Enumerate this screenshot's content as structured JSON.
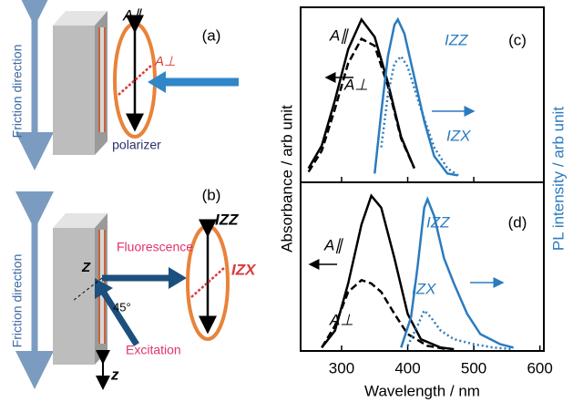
{
  "diagrams": [
    {
      "label": "(a)",
      "axis_label": "Friction direction",
      "polarizer": "polarizer",
      "parallel": "A∥",
      "perp": "A⊥"
    },
    {
      "label": "(b)",
      "axis_label": "Friction direction",
      "fluorescence": "Fluorescence",
      "angle": "45°",
      "excitation": "Excitation",
      "zz": "IZZ",
      "zx": "IZX",
      "z_upper": "Z",
      "z_lower": "z"
    }
  ],
  "figure": {
    "ylabel": "Absorbance / arb unit",
    "y2label": "PL intensity / arb unit"
  },
  "chart_data": [
    {
      "type": "line",
      "title": "(c)",
      "xlim": [
        238,
        606
      ],
      "ylim": [
        0,
        1
      ],
      "xticks": [
        300,
        400,
        500
      ],
      "show_tick_labels": false,
      "series": [
        {
          "name": "A∥",
          "color": "#000000",
          "style": "solid",
          "x": [
            250,
            270,
            290,
            310,
            330,
            350,
            370,
            390,
            410
          ],
          "values": [
            0.08,
            0.21,
            0.47,
            0.76,
            0.93,
            0.83,
            0.57,
            0.26,
            0.08
          ]
        },
        {
          "name": "A⊥",
          "color": "#000000",
          "style": "dashed",
          "x": [
            250,
            270,
            290,
            310,
            330,
            350,
            370,
            390,
            410
          ],
          "values": [
            0.06,
            0.18,
            0.42,
            0.68,
            0.82,
            0.78,
            0.55,
            0.25,
            0.08
          ]
        },
        {
          "name": "IZZ",
          "color": "#2b7bbf",
          "style": "solid",
          "x": [
            350,
            360,
            370,
            380,
            385,
            395,
            410,
            425,
            440,
            460,
            475
          ],
          "values": [
            0.05,
            0.4,
            0.72,
            0.9,
            0.93,
            0.85,
            0.6,
            0.35,
            0.15,
            0.05,
            0.04
          ]
        },
        {
          "name": "IZX",
          "color": "#2b7bbf",
          "style": "dotted",
          "x": [
            360,
            370,
            380,
            390,
            400,
            420,
            440,
            460,
            480
          ],
          "values": [
            0.2,
            0.5,
            0.68,
            0.72,
            0.66,
            0.42,
            0.2,
            0.08,
            0.03
          ]
        }
      ]
    },
    {
      "type": "line",
      "title": "(d)",
      "xlabel": "Wavelength / nm",
      "xlim": [
        238,
        606
      ],
      "ylim": [
        0,
        1
      ],
      "xticks": [
        300,
        400,
        500,
        600
      ],
      "show_tick_labels": true,
      "series": [
        {
          "name": "A∥",
          "color": "#000000",
          "style": "solid",
          "x": [
            270,
            290,
            310,
            330,
            345,
            360,
            380,
            400,
            420,
            450,
            470
          ],
          "values": [
            0.02,
            0.12,
            0.4,
            0.75,
            0.92,
            0.85,
            0.55,
            0.22,
            0.07,
            0.02,
            0.01
          ]
        },
        {
          "name": "A⊥",
          "color": "#000000",
          "style": "dashed",
          "x": [
            270,
            290,
            310,
            330,
            345,
            360,
            380,
            400,
            430,
            460
          ],
          "values": [
            0.02,
            0.15,
            0.35,
            0.42,
            0.4,
            0.35,
            0.22,
            0.1,
            0.03,
            0.01
          ]
        },
        {
          "name": "IZZ",
          "color": "#2b7bbf",
          "style": "solid",
          "x": [
            390,
            405,
            415,
            425,
            430,
            440,
            455,
            470,
            490,
            510,
            540,
            560
          ],
          "values": [
            0.02,
            0.2,
            0.5,
            0.85,
            0.9,
            0.8,
            0.55,
            0.4,
            0.22,
            0.1,
            0.04,
            0.02
          ]
        },
        {
          "name": "IZX",
          "color": "#2b7bbf",
          "style": "dotted",
          "x": [
            400,
            415,
            425,
            435,
            450,
            470,
            500,
            530,
            560
          ],
          "values": [
            0.03,
            0.15,
            0.24,
            0.2,
            0.12,
            0.07,
            0.04,
            0.02,
            0.01
          ]
        }
      ]
    }
  ]
}
